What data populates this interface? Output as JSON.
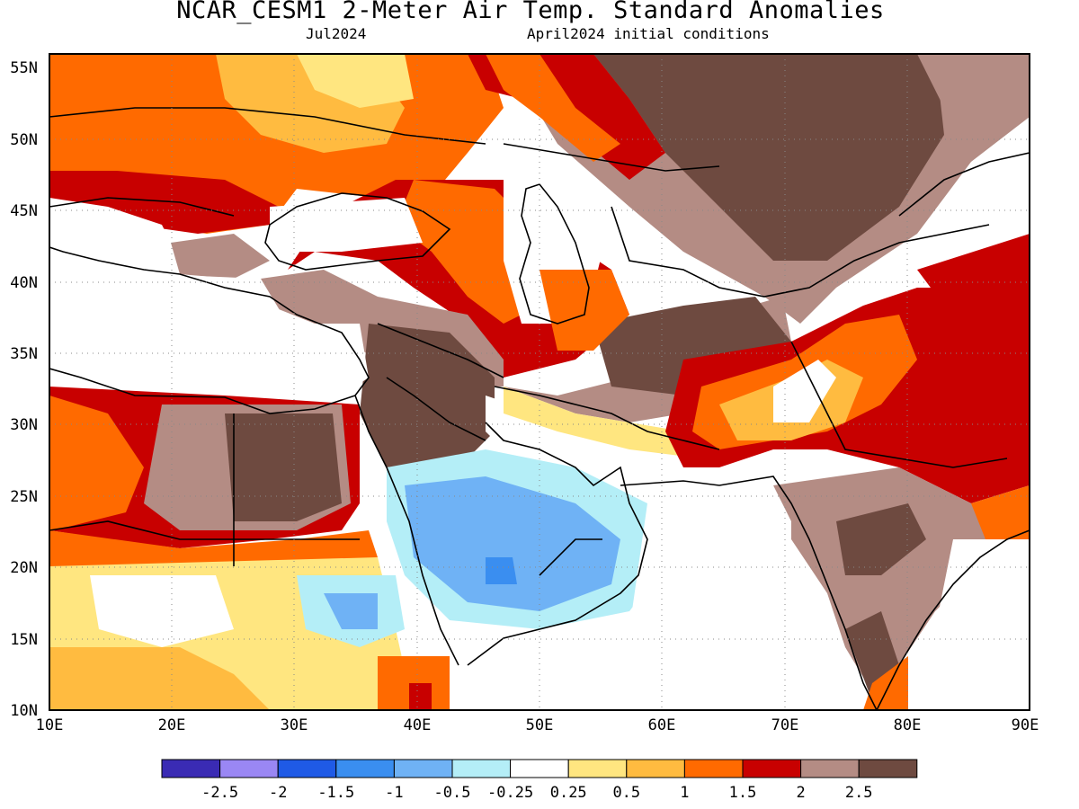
{
  "title": "NCAR_CESM1 2-Meter Air Temp. Standard Anomalies",
  "subtitle_left": "Jul2024",
  "subtitle_right": "April2024 initial conditions",
  "axes": {
    "lat_labels": [
      "55N",
      "50N",
      "45N",
      "40N",
      "35N",
      "30N",
      "25N",
      "20N",
      "15N",
      "10N"
    ],
    "lon_labels": [
      "10E",
      "20E",
      "30E",
      "40E",
      "50E",
      "60E",
      "70E",
      "80E",
      "90E"
    ],
    "lat_range": [
      10,
      56
    ],
    "lon_range": [
      10,
      90
    ],
    "grid": "dotted"
  },
  "colorbar": {
    "colors": [
      "#3a2bb4",
      "#9a87f4",
      "#1f5ae6",
      "#3a8ef0",
      "#6fb2f5",
      "#b4eef7",
      "#ffffff",
      "#ffe680",
      "#ffbb40",
      "#ff6a00",
      "#c80000",
      "#b48c84",
      "#6e4a40"
    ],
    "labels": [
      "-2.5",
      "-2",
      "-1.5",
      "-1",
      "-0.5",
      "-0.25",
      "0.25",
      "0.5",
      "1",
      "1.5",
      "2",
      "2.5"
    ]
  },
  "legend_text_color": "#000000"
}
